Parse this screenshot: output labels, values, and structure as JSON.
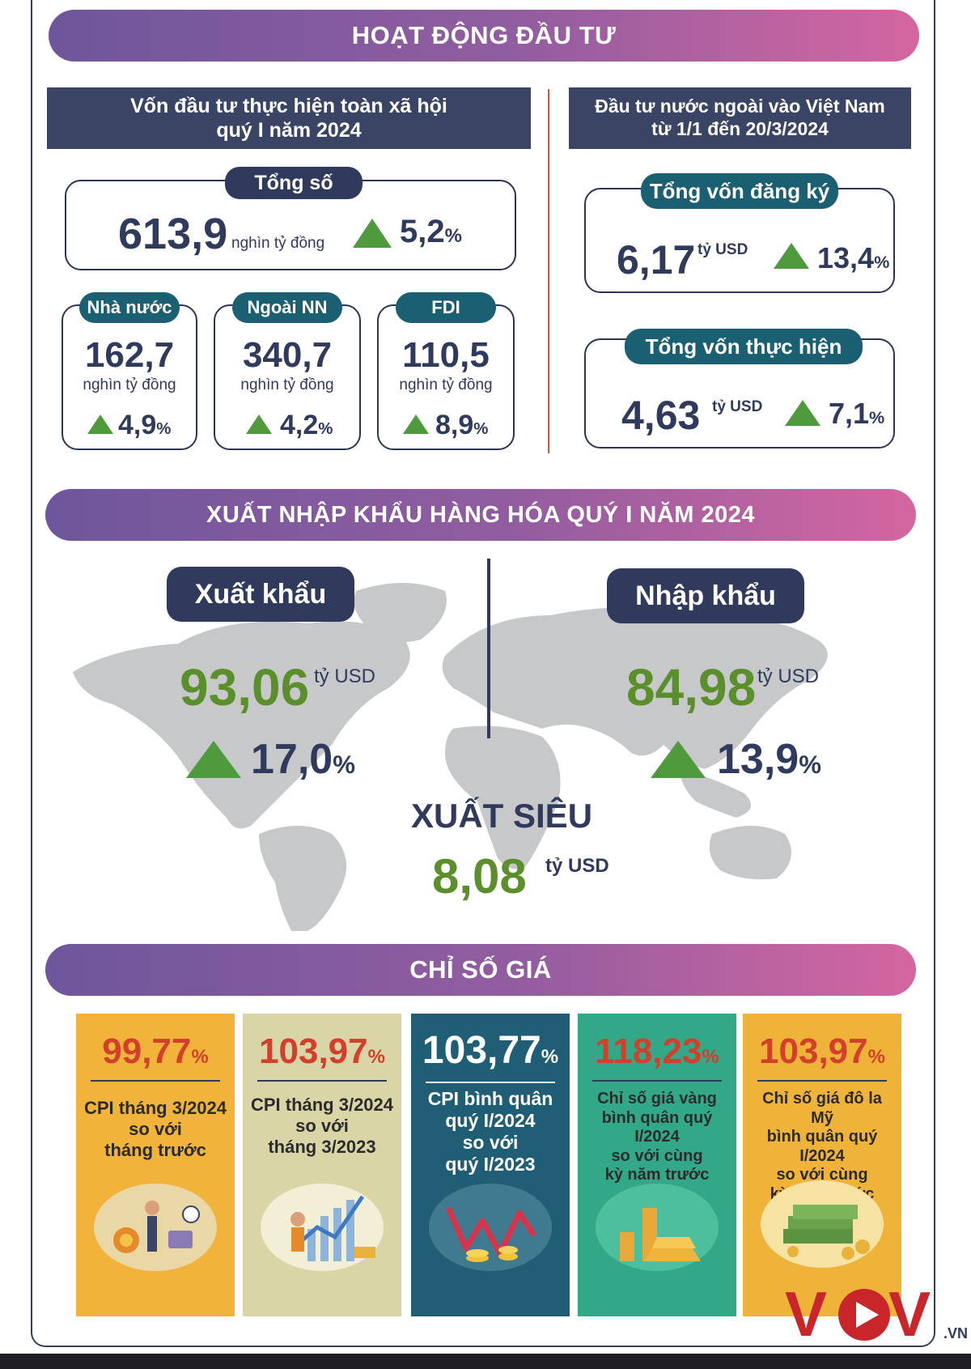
{
  "investment": {
    "banner": "HOẠT ĐỘNG ĐẦU TƯ",
    "left": {
      "header_line1": "Vốn đầu tư thực hiện toàn xã hội",
      "header_line2": "quý I năm 2024",
      "total": {
        "label": "Tổng số",
        "value": "613,9",
        "unit": "nghìn tỷ đồng",
        "growth": "5,2",
        "pct": "%"
      },
      "items": [
        {
          "label": "Nhà nước",
          "value": "162,7",
          "unit": "nghìn tỷ đồng",
          "growth": "4,9",
          "pct": "%"
        },
        {
          "label": "Ngoài NN",
          "value": "340,7",
          "unit": "nghìn tỷ đồng",
          "growth": "4,2",
          "pct": "%"
        },
        {
          "label": "FDI",
          "value": "110,5",
          "unit": "nghìn tỷ đồng",
          "growth": "8,9",
          "pct": "%"
        }
      ]
    },
    "right": {
      "header_line1": "Đầu tư nước ngoài vào Việt Nam",
      "header_line2": "từ 1/1 đến 20/3/2024",
      "registered": {
        "label": "Tổng vốn đăng ký",
        "value": "6,17",
        "unit": "tỷ USD",
        "growth": "13,4",
        "pct": "%"
      },
      "implemented": {
        "label": "Tổng vốn thực hiện",
        "value": "4,63",
        "unit": "tỷ USD",
        "growth": "7,1",
        "pct": "%"
      }
    }
  },
  "trade": {
    "banner": "XUẤT NHẬP KHẨU HÀNG HÓA QUÝ I NĂM 2024",
    "export": {
      "label": "Xuất khẩu",
      "value": "93,06",
      "unit": "tỷ USD",
      "growth": "17,0",
      "pct": "%"
    },
    "import": {
      "label": "Nhập khẩu",
      "value": "84,98",
      "unit": "tỷ USD",
      "growth": "13,9",
      "pct": "%"
    },
    "surplus": {
      "label": "XUẤT SIÊU",
      "value": "8,08",
      "unit": "tỷ USD"
    }
  },
  "prices": {
    "banner": "CHỈ SỐ GIÁ",
    "cards": [
      {
        "value": "99,77",
        "pct": "%",
        "line1": "CPI tháng 3/2024",
        "line2": "so với",
        "line3": "tháng trước",
        "line4": ""
      },
      {
        "value": "103,97",
        "pct": "%",
        "line1": "CPI tháng 3/2024",
        "line2": "so với",
        "line3": "tháng 3/2023",
        "line4": ""
      },
      {
        "value": "103,77",
        "pct": "%",
        "line1": "CPI bình quân",
        "line2": "quý I/2024",
        "line3": "so với",
        "line4": "quý I/2023"
      },
      {
        "value": "118,23",
        "pct": "%",
        "line1": "Chỉ số giá vàng",
        "line2": "bình quân quý I/2024",
        "line3": "so với cùng",
        "line4": "kỳ năm trước"
      },
      {
        "value": "103,97",
        "pct": "%",
        "line1": "Chỉ số giá đô la Mỹ",
        "line2": "bình quân quý I/2024",
        "line3": "so với cùng",
        "line4": "kỳ năm trước"
      }
    ]
  },
  "logo": {
    "text": "VOV",
    "suffix": ".VN"
  },
  "colors": {
    "navy": "#2f3a5c",
    "teal": "#1b5f73",
    "green_arrow": "#4f9a3c",
    "green_value": "#5b8f2b",
    "red_value": "#d2402b",
    "banner_start": "#6e569c",
    "banner_end": "#d466a0"
  }
}
